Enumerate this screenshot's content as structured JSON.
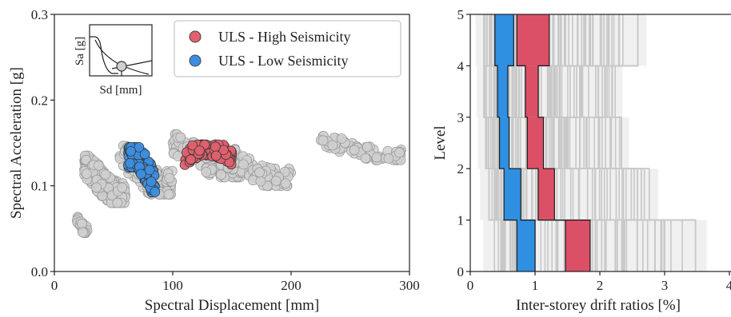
{
  "chart_data": [
    {
      "type": "scatter",
      "xlabel": "Spectral Displacement [mm]",
      "ylabel": "Spectral Acceleration [g]",
      "xlim": [
        0,
        300
      ],
      "ylim": [
        0.0,
        0.3
      ],
      "xticks": [
        "0",
        "100",
        "200",
        "300"
      ],
      "yticks": [
        "0.0",
        "0.1",
        "0.2",
        "0.3"
      ],
      "legend_position": "top-right",
      "series": [
        {
          "name": "ULS - High Seismicity",
          "color": "#e0606e",
          "clusters": [
            {
              "x": [
                110,
                150
              ],
              "y": [
                0.118,
                0.148
              ],
              "n": 120
            }
          ]
        },
        {
          "name": "ULS - Low Seismicity",
          "color": "#3b8ee0",
          "clusters": [
            {
              "x": [
                62,
                85
              ],
              "y": [
                0.092,
                0.145
              ],
              "n": 110
            }
          ]
        },
        {
          "name": "",
          "color": "#d0d0d0",
          "clusters": [
            {
              "x": [
                18,
                28
              ],
              "y": [
                0.045,
                0.065
              ],
              "n": 25
            },
            {
              "x": [
                25,
                60
              ],
              "y": [
                0.08,
                0.135
              ],
              "n": 180
            },
            {
              "x": [
                55,
                100
              ],
              "y": [
                0.09,
                0.15
              ],
              "n": 120
            },
            {
              "x": [
                100,
                160
              ],
              "y": [
                0.11,
                0.16
              ],
              "n": 90
            },
            {
              "x": [
                140,
                200
              ],
              "y": [
                0.1,
                0.145
              ],
              "n": 90
            },
            {
              "x": [
                225,
                295
              ],
              "y": [
                0.13,
                0.158
              ],
              "n": 70
            }
          ]
        }
      ],
      "inset": {
        "xlabel": "Sd [mm]",
        "ylabel": "Sa [g]"
      }
    },
    {
      "type": "line",
      "xlabel": "Inter-storey drift ratios [%]",
      "ylabel": "Level",
      "xlim": [
        0,
        4
      ],
      "ylim": [
        0,
        5
      ],
      "xticks": [
        "0",
        "1",
        "2",
        "3",
        "4"
      ],
      "yticks": [
        "0",
        "1",
        "2",
        "3",
        "4",
        "5"
      ],
      "series": [
        {
          "name": "ULS - Low Seismicity",
          "color": "#2f8fe0",
          "storeys": [
            {
              "level": [
                0,
                1
              ],
              "x": [
                0.72,
                1.0
              ]
            },
            {
              "level": [
                1,
                2
              ],
              "x": [
                0.52,
                0.78
              ]
            },
            {
              "level": [
                2,
                3
              ],
              "x": [
                0.45,
                0.6
              ]
            },
            {
              "level": [
                3,
                4
              ],
              "x": [
                0.42,
                0.58
              ]
            },
            {
              "level": [
                4,
                5
              ],
              "x": [
                0.38,
                0.67
              ]
            }
          ]
        },
        {
          "name": "ULS - High Seismicity",
          "color": "#dc5067",
          "storeys": [
            {
              "level": [
                0,
                1
              ],
              "x": [
                1.47,
                1.85
              ]
            },
            {
              "level": [
                1,
                2
              ],
              "x": [
                1.05,
                1.3
              ]
            },
            {
              "level": [
                2,
                3
              ],
              "x": [
                0.88,
                1.13
              ]
            },
            {
              "level": [
                3,
                4
              ],
              "x": [
                0.85,
                1.05
              ]
            },
            {
              "level": [
                4,
                5
              ],
              "x": [
                0.72,
                1.22
              ]
            }
          ]
        },
        {
          "name": "",
          "color": "#cdcdcd",
          "storeys": [
            {
              "level": [
                0,
                1
              ],
              "x": [
                0.2,
                3.65
              ]
            },
            {
              "level": [
                1,
                2
              ],
              "x": [
                0.15,
                2.9
              ]
            },
            {
              "level": [
                2,
                3
              ],
              "x": [
                0.12,
                2.45
              ]
            },
            {
              "level": [
                3,
                4
              ],
              "x": [
                0.1,
                2.35
              ]
            },
            {
              "level": [
                4,
                5
              ],
              "x": [
                0.08,
                2.72
              ]
            }
          ]
        }
      ]
    }
  ]
}
